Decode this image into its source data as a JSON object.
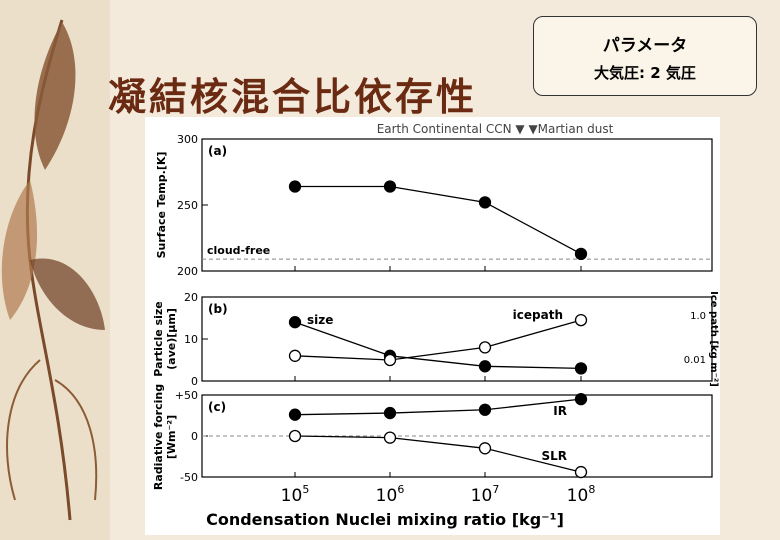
{
  "slide": {
    "title": "凝結核混合比依存性",
    "param_title": "パラメータ",
    "param_value": "大気圧: 2 気圧"
  },
  "chart_data": {
    "type": "line",
    "top_legend": "Earth Continental CCN ▼   ▼Martian dust",
    "xlabel": "Condensation Nuclei mixing ratio [kg⁻¹]",
    "x": [
      100000,
      1000000,
      10000000,
      100000000
    ],
    "x_tick_labels": [
      {
        "base": "10",
        "exp": "5"
      },
      {
        "base": "10",
        "exp": "6"
      },
      {
        "base": "10",
        "exp": "7"
      },
      {
        "base": "10",
        "exp": "8"
      }
    ],
    "x_scale": "log",
    "panels": [
      {
        "id": "a",
        "label": "(a)",
        "ylabel": "Surface Temp.[K]",
        "ylim": [
          200,
          300
        ],
        "yticks": [
          "200",
          "250",
          "300"
        ],
        "reference_line": {
          "label": "cloud-free",
          "value": 209
        },
        "series": [
          {
            "marker": "filled",
            "values": [
              264,
              264,
              252,
              213
            ]
          }
        ]
      },
      {
        "id": "b",
        "label": "(b)",
        "ylabel_line1": "Particle size",
        "ylabel_line2": "(ave)[μm]",
        "ylabel_right": "Ice path [kg m⁻²]",
        "ylim": [
          0,
          20
        ],
        "yticks": [
          "0",
          "10",
          "20"
        ],
        "right_ticks": [
          "0.01",
          "1.0"
        ],
        "series": [
          {
            "name": "size",
            "marker": "filled",
            "values": [
              14,
              6,
              3.5,
              3
            ]
          },
          {
            "name": "icepath",
            "marker": "open",
            "values": [
              6,
              5,
              8,
              14.5
            ]
          }
        ]
      },
      {
        "id": "c",
        "label": "(c)",
        "ylabel_line1": "Radiative forcing",
        "ylabel_line2": "[Wm⁻²]",
        "ylim": [
          -50,
          50
        ],
        "yticks": [
          "-50",
          "0",
          "+50"
        ],
        "reference_line": {
          "label": "",
          "value": 0
        },
        "series": [
          {
            "name": "IR",
            "marker": "filled",
            "values": [
              26,
              28,
              32,
              45
            ]
          },
          {
            "name": "SLR",
            "marker": "open",
            "values": [
              0,
              -2,
              -15,
              -44
            ]
          }
        ]
      }
    ]
  }
}
